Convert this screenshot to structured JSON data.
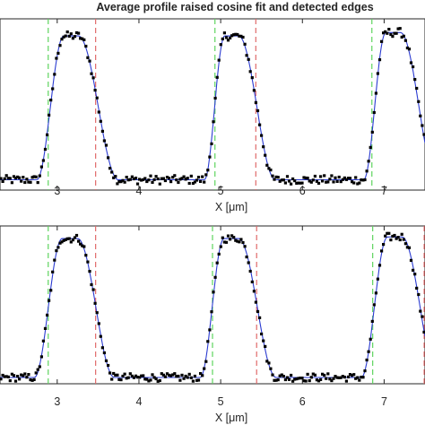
{
  "colors": {
    "points": "#000000",
    "fit": "#2b3bd1",
    "left_edge": "#5ed45e",
    "right_edge": "#e06a6a",
    "axes": "#262626"
  },
  "chart_data": [
    {
      "type": "scatter",
      "title": "Average profile raised cosine fit and detected edges",
      "xlabel": "X [μm]",
      "xlim": [
        2.3,
        7.5
      ],
      "ylim": [
        0.0,
        1.0
      ],
      "x_ticks": [
        3,
        4,
        5,
        6,
        7
      ],
      "x_tick_labels": [
        "3",
        "4",
        "5",
        "6",
        "7"
      ],
      "grid": false,
      "edges": {
        "left": [
          2.89,
          4.93,
          6.85
        ],
        "right": [
          3.47,
          5.43,
          7.53
        ]
      },
      "peaks": [
        {
          "center": 3.18,
          "rise_start": 2.75,
          "flat_start": 3.08,
          "flat_end": 3.26,
          "fall_end": 3.75,
          "height": 0.9
        },
        {
          "center": 5.15,
          "rise_start": 4.8,
          "flat_start": 5.05,
          "flat_end": 5.22,
          "fall_end": 5.67,
          "height": 0.9
        },
        {
          "center": 7.12,
          "rise_start": 6.75,
          "flat_start": 7.02,
          "flat_end": 7.2,
          "fall_end": 7.65,
          "height": 0.92
        }
      ],
      "baseline": 0.06,
      "series": [
        {
          "type": "line",
          "values_from": "raised-cosine model"
        },
        {
          "type": "scatter",
          "values_from": "profile samples"
        }
      ]
    },
    {
      "type": "scatter",
      "title": "",
      "xlabel": "X [μm]",
      "xlim": [
        2.3,
        7.5
      ],
      "ylim": [
        0.0,
        1.0
      ],
      "x_ticks": [
        3,
        4,
        5,
        6,
        7
      ],
      "x_tick_labels": [
        "3",
        "4",
        "5",
        "6",
        "7"
      ],
      "grid": false,
      "edges": {
        "left": [
          2.89,
          4.9,
          6.86
        ],
        "right": [
          3.47,
          5.44,
          7.49
        ]
      },
      "peaks": [
        {
          "center": 3.16,
          "rise_start": 2.72,
          "flat_start": 3.06,
          "flat_end": 3.25,
          "fall_end": 3.7,
          "height": 0.92
        },
        {
          "center": 5.12,
          "rise_start": 4.75,
          "flat_start": 5.04,
          "flat_end": 5.22,
          "fall_end": 5.68,
          "height": 0.92
        },
        {
          "center": 7.12,
          "rise_start": 6.72,
          "flat_start": 7.04,
          "flat_end": 7.22,
          "fall_end": 7.66,
          "height": 0.93
        }
      ],
      "baseline": 0.04,
      "series": [
        {
          "type": "line",
          "values_from": "raised-cosine model"
        },
        {
          "type": "scatter",
          "values_from": "profile samples"
        }
      ]
    }
  ]
}
